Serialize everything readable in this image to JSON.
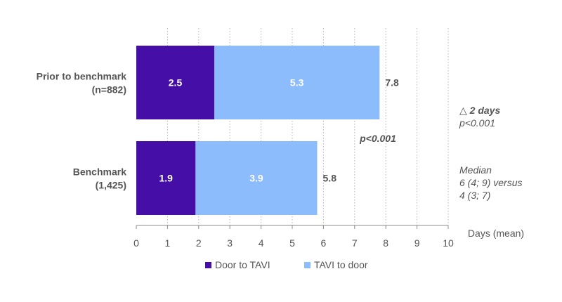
{
  "chart_data": {
    "type": "bar",
    "orientation": "horizontal",
    "stacked": true,
    "categories": [
      "Prior to benchmark\n(n=882)",
      "Benchmark\n(1,425)"
    ],
    "series": [
      {
        "name": "Door to TAVI",
        "color": "#450ea6",
        "values": [
          2.5,
          1.9
        ]
      },
      {
        "name": "TAVI to door",
        "color": "#8cbcfc",
        "values": [
          5.3,
          3.9
        ]
      }
    ],
    "totals": [
      "7.8",
      "5.8"
    ],
    "xlabel": "Days (mean)",
    "xlim": [
      0,
      10
    ],
    "xticks": [
      0,
      1,
      2,
      3,
      4,
      5,
      6,
      7,
      8,
      9,
      10
    ],
    "grid": "vertical-dotted",
    "legend_position": "bottom",
    "annotations": {
      "p_value": "p<0.001",
      "delta_title": "△ 2 days",
      "delta_p": "p<0.001",
      "median_lines": [
        "Median",
        "6 (4; 9) versus",
        "4 (3; 7)"
      ]
    }
  }
}
